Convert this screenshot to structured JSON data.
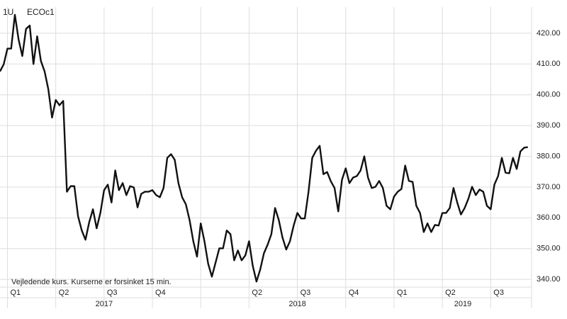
{
  "chart_data": {
    "type": "line",
    "ric_code": "1U",
    "instrument": "ECOc1",
    "note": "Vejledende kurs. Kurserne er forsinket 15 min.",
    "color": "#111111",
    "values": [
      407.6,
      409.9,
      415,
      415,
      426,
      418,
      412.6,
      421.4,
      422.5,
      410,
      419,
      411,
      407.6,
      401.8,
      392.6,
      398.3,
      396.6,
      398,
      368.5,
      370.3,
      370.3,
      360.5,
      355.9,
      352.9,
      358.6,
      362.8,
      356.6,
      361.6,
      369,
      370.8,
      365,
      375.4,
      369,
      371.3,
      367.4,
      370.3,
      369.9,
      363.4,
      367.8,
      368.5,
      368.5,
      369,
      367.4,
      366.7,
      369.7,
      379.5,
      380.7,
      378.9,
      371.3,
      366.7,
      364.4,
      359.3,
      352.4,
      347.4,
      358.2,
      352.4,
      345.1,
      340.9,
      345.5,
      350.1,
      350.1,
      355.9,
      354.7,
      346.2,
      349.4,
      346.2,
      347.8,
      352.4,
      344.4,
      339.3,
      343.2,
      348.5,
      351.3,
      354.7,
      363.2,
      359.3,
      353.6,
      349.7,
      352.4,
      357.5,
      361.6,
      359.8,
      359.8,
      368.5,
      379.5,
      381.8,
      383.4,
      374.2,
      374.9,
      371.9,
      369.7,
      362.1,
      372.4,
      376.1,
      371.3,
      373.1,
      373.6,
      375.4,
      380,
      373.1,
      369.7,
      370.1,
      372,
      369.7,
      363.9,
      362.8,
      366.9,
      368.5,
      369.4,
      377,
      372,
      371.7,
      363.9,
      361.6,
      355.4,
      358.2,
      355.4,
      357.7,
      357.5,
      361.6,
      361.6,
      363.2,
      369.7,
      365,
      361.1,
      363.2,
      366.2,
      370.1,
      367.4,
      369.2,
      368.5,
      363.9,
      362.8,
      370.8,
      373.6,
      379.5,
      374.7,
      374.5,
      379.5,
      375.9,
      381.6,
      382.8,
      383
    ],
    "xlim": [
      0,
      143
    ],
    "xticks": [
      {
        "value": 2,
        "label": "Q1"
      },
      {
        "value": 15,
        "label": "Q2"
      },
      {
        "value": 28,
        "label": "Q3"
      },
      {
        "value": 41,
        "label": "Q4"
      },
      {
        "value": 54,
        "label": null
      },
      {
        "value": 67,
        "label": "Q2"
      },
      {
        "value": 80,
        "label": "Q3"
      },
      {
        "value": 93,
        "label": "Q4"
      },
      {
        "value": 106,
        "label": "Q1"
      },
      {
        "value": 119,
        "label": "Q2"
      },
      {
        "value": 132,
        "label": "Q3"
      }
    ],
    "years": [
      "2017",
      "2018",
      "2019"
    ],
    "ylim": [
      337.5,
      428.5
    ],
    "yticks": [
      {
        "value": 340,
        "label": "340.00"
      },
      {
        "value": 350,
        "label": "350.00"
      },
      {
        "value": 360,
        "label": "360.00"
      },
      {
        "value": 370,
        "label": "370.00"
      },
      {
        "value": 380,
        "label": "380.00"
      },
      {
        "value": 390,
        "label": "390.00"
      },
      {
        "value": 400,
        "label": "400.00"
      },
      {
        "value": 410,
        "label": "410.00"
      },
      {
        "value": 420,
        "label": "420.00"
      }
    ],
    "grid": true
  }
}
